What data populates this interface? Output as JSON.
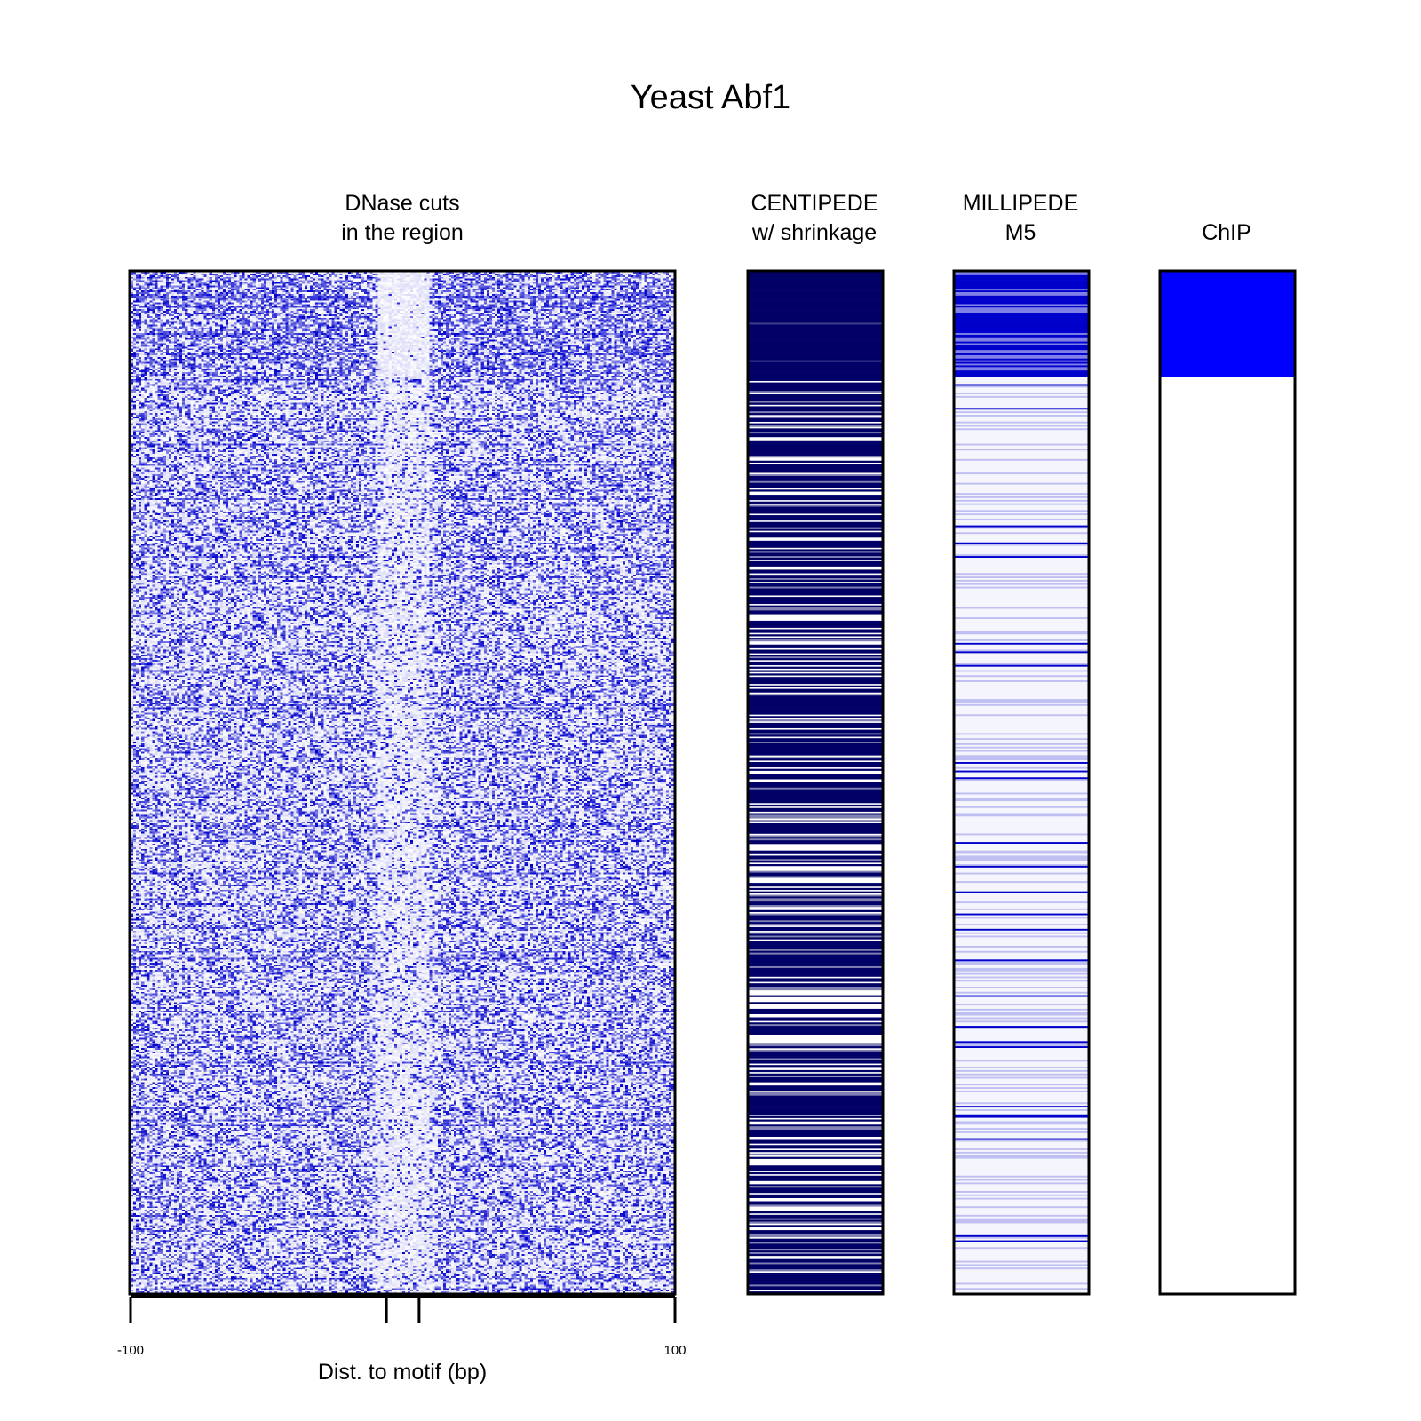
{
  "chart_data": {
    "type": "heatmap",
    "title": "Yeast Abf1",
    "panels": [
      {
        "id": "dnase",
        "title_lines": [
          "DNase cuts",
          "in the region"
        ],
        "type": "heatmap",
        "color_low": "#ffffff",
        "color_high": "#0000cc",
        "description": "DNase cut counts per site (rows) by position relative to motif (columns); sites sorted by ChIP status; footprint depletion around motif center",
        "xlabel": "Dist. to motif (bp)",
        "xlim": [
          -100,
          100
        ],
        "x_tick_labels": [
          "-100",
          "100"
        ],
        "x_ticks": [
          -100,
          -6,
          6,
          100
        ],
        "footprint_region": [
          -10,
          10
        ]
      },
      {
        "id": "centipede",
        "title_lines": [
          "CENTIPEDE",
          "w/ shrinkage"
        ],
        "type": "heatmap",
        "color_high": "#000066",
        "color_low": "#ffffff"
      },
      {
        "id": "millipede",
        "title_lines": [
          "MILLIPEDE",
          "M5"
        ],
        "type": "heatmap",
        "color_high": "#0000cc",
        "color_low": "#ffffff"
      },
      {
        "id": "chip",
        "title_lines": [
          "",
          "ChIP"
        ],
        "type": "heatmap",
        "color_high": "#0000ff",
        "color_low": "#ffffff",
        "bound_fraction": 0.103
      }
    ],
    "rows": 600
  }
}
